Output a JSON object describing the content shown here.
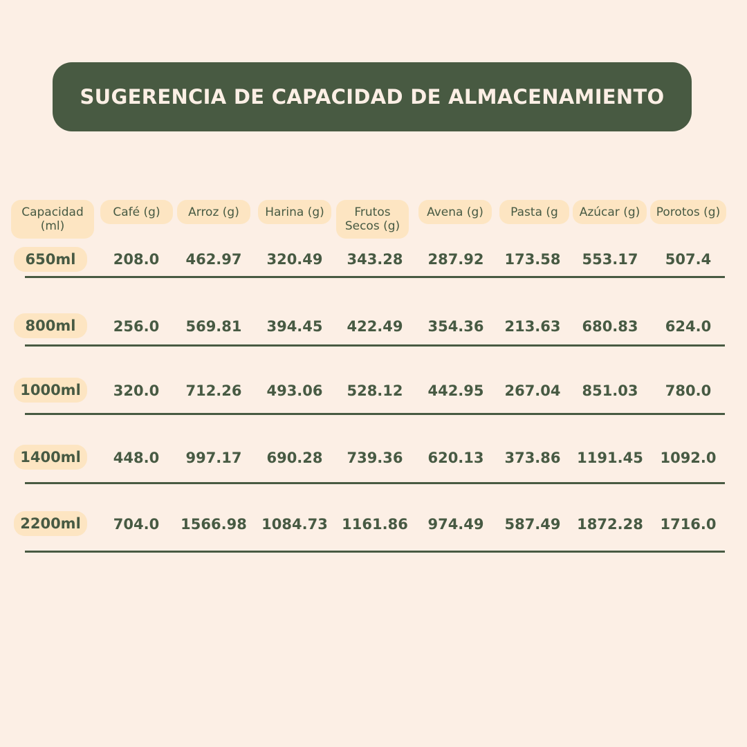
{
  "title": "SUGERENCIA DE CAPACIDAD DE ALMACENAMIENTO",
  "headers": {
    "capacidad": "Capacidad (ml)",
    "cafe": "Café (g)",
    "arroz": "Arroz (g)",
    "harina": "Harina (g)",
    "frutos": "Frutos Secos (g)",
    "avena": "Avena (g)",
    "pasta": "Pasta (g",
    "azucar": "Azúcar (g)",
    "porotos": "Porotos (g)"
  },
  "rows": [
    {
      "capacidad": "650ml",
      "cafe": "208.0",
      "arroz": "462.97",
      "harina": "320.49",
      "frutos": "343.28",
      "avena": "287.92",
      "pasta": "173.58",
      "azucar": "553.17",
      "porotos": "507.4"
    },
    {
      "capacidad": "800ml",
      "cafe": "256.0",
      "arroz": "569.81",
      "harina": "394.45",
      "frutos": "422.49",
      "avena": "354.36",
      "pasta": "213.63",
      "azucar": "680.83",
      "porotos": "624.0"
    },
    {
      "capacidad": "1000ml",
      "cafe": "320.0",
      "arroz": "712.26",
      "harina": "493.06",
      "frutos": "528.12",
      "avena": "442.95",
      "pasta": "267.04",
      "azucar": "851.03",
      "porotos": "780.0"
    },
    {
      "capacidad": "1400ml",
      "cafe": "448.0",
      "arroz": "997.17",
      "harina": "690.28",
      "frutos": "739.36",
      "avena": "620.13",
      "pasta": "373.86",
      "azucar": "1191.45",
      "porotos": "1092.0"
    },
    {
      "capacidad": "2200ml",
      "cafe": "704.0",
      "arroz": "1566.98",
      "harina": "1084.73",
      "frutos": "1161.86",
      "avena": "974.49",
      "pasta": "587.49",
      "azucar": "1872.28",
      "porotos": "1716.0"
    }
  ],
  "colors": {
    "background": "#fcefe5",
    "banner": "#485a42",
    "pill": "#fde5c2",
    "text": "#475a43"
  }
}
